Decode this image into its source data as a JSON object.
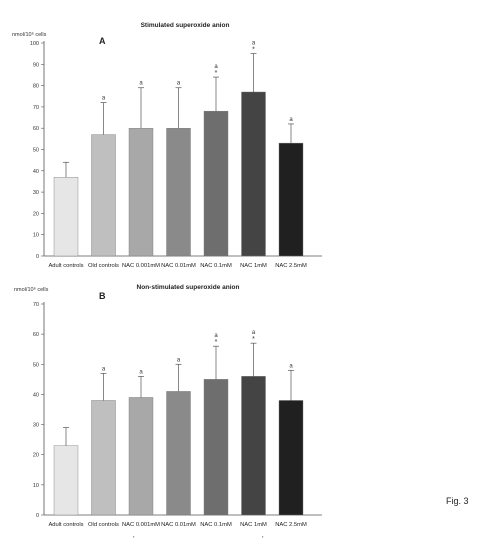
{
  "figure_label": "Fig. 3",
  "bottom_marks": [
    "’",
    "’"
  ],
  "chart_data": [
    {
      "type": "bar",
      "panel": "A",
      "title": "Stimulated superoxide anion",
      "ylabel": "nmol/10⁶ cells",
      "ylim": [
        0,
        100
      ],
      "yticks": [
        0,
        10,
        20,
        30,
        40,
        50,
        60,
        70,
        80,
        90,
        100
      ],
      "grid": false,
      "categories": [
        "Adult controls",
        "Old controls",
        "NAC 0.001mM",
        "NAC 0.01mM",
        "NAC 0.1mM",
        "NAC 1mM",
        "NAC 2.5mM"
      ],
      "values": [
        37,
        57,
        60,
        60,
        68,
        77,
        53
      ],
      "errors": [
        7,
        15,
        19,
        19,
        16,
        18,
        9
      ],
      "annotations": [
        "",
        "a",
        "a",
        "a",
        "a *",
        "a *",
        "a"
      ],
      "colors": [
        "#e6e6e6",
        "#bfbfbf",
        "#a8a8a8",
        "#8a8a8a",
        "#6e6e6e",
        "#444444",
        "#202020"
      ]
    },
    {
      "type": "bar",
      "panel": "B",
      "title": "Non-stimulated superoxide anion",
      "ylabel": "nmol/10⁶ cells",
      "ylim": [
        0,
        70
      ],
      "yticks": [
        0,
        10,
        20,
        30,
        40,
        50,
        60,
        70
      ],
      "grid": false,
      "categories": [
        "Adult controls",
        "Old controls",
        "NAC 0.001mM",
        "NAC 0.01mM",
        "NAC 0.1mM",
        "NAC 1mM",
        "NAC 2.5mM"
      ],
      "values": [
        23,
        38,
        39,
        41,
        45,
        46,
        38
      ],
      "errors": [
        6,
        9,
        7,
        9,
        11,
        11,
        10
      ],
      "annotations": [
        "",
        "a",
        "a",
        "a",
        "a *",
        "a *",
        "a"
      ],
      "colors": [
        "#e6e6e6",
        "#bfbfbf",
        "#a8a8a8",
        "#8a8a8a",
        "#6e6e6e",
        "#444444",
        "#202020"
      ]
    }
  ]
}
